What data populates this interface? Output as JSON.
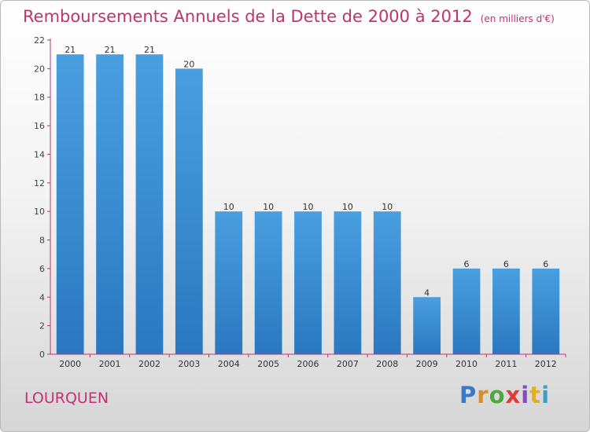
{
  "chart_data": {
    "type": "bar",
    "title": "Remboursements Annuels de la Dette de 2000 à 2012",
    "subtitle": "(en milliers d'€)",
    "categories": [
      "2000",
      "2001",
      "2002",
      "2003",
      "2004",
      "2005",
      "2006",
      "2007",
      "2008",
      "2009",
      "2010",
      "2011",
      "2012"
    ],
    "values": [
      21,
      21,
      21,
      20,
      10,
      10,
      10,
      10,
      10,
      4,
      6,
      6,
      6
    ],
    "ylim": [
      0,
      22
    ],
    "yticks": [
      0,
      2,
      4,
      6,
      8,
      10,
      12,
      14,
      16,
      18,
      20,
      22
    ],
    "grid": false,
    "bar_color": "#4a9fe0",
    "bar_color_dark": "#2a78c0"
  },
  "footer": {
    "commune": "LOURQUEN",
    "logo_letters": [
      {
        "ch": "P",
        "color": "#3a78c8"
      },
      {
        "ch": "r",
        "color": "#e08a2a"
      },
      {
        "ch": "o",
        "color": "#4aaa3a"
      },
      {
        "ch": "x",
        "color": "#e03a3a"
      },
      {
        "ch": "i",
        "color": "#8a4ac8"
      },
      {
        "ch": "t",
        "color": "#e0b02a"
      },
      {
        "ch": "i",
        "color": "#3aa0c8"
      }
    ]
  },
  "colors": {
    "title": "#c0336e",
    "axis": "#c0336e"
  }
}
